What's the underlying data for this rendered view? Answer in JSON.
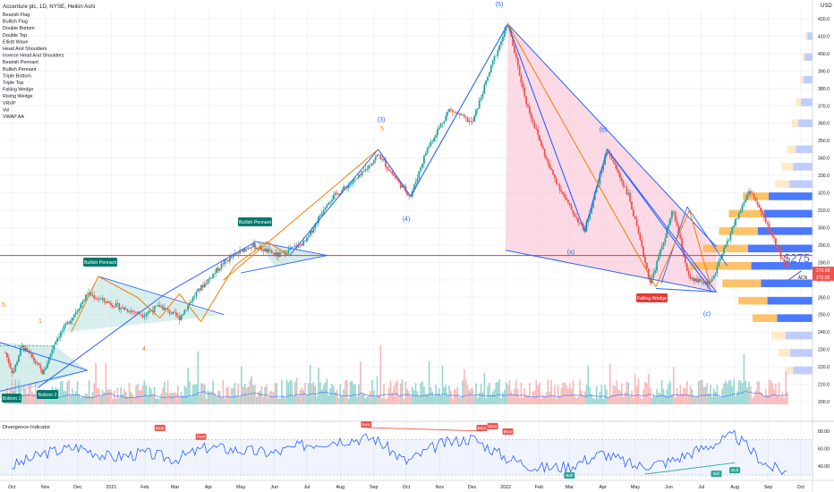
{
  "header": {
    "title": "Accenture plc, 1D, NYSE, Heikin Ashi",
    "currency": "USD"
  },
  "indicator_legend": [
    "Bearish Flag",
    "Bullish Flag",
    "Double Bottom",
    "Double Top",
    "Elliott Wave",
    "Head And Shoulders",
    "Inverse Head And Shoulders",
    "Bearish Pennant",
    "Bullish Pennant",
    "Triple Bottom",
    "Triple Top",
    "Falling Wedge",
    "Rising Wedge",
    "VRVP",
    "Vol",
    "VWAP AA"
  ],
  "price_axis": {
    "ticks": [
      420,
      410,
      400,
      390,
      380,
      370,
      360,
      350,
      340,
      330,
      320,
      310,
      300,
      290,
      280,
      270,
      260,
      250,
      240,
      230,
      220,
      210,
      200
    ],
    "last_price_label": "273.68",
    "last_price_label_2": "272.50",
    "symbol_tag": "ACN"
  },
  "oscillator": {
    "title": "Divergence Indicator",
    "ticks": [
      80,
      60,
      40
    ],
    "tick_labels": [
      "80.00",
      "60.00",
      "40.00"
    ],
    "bear_label": "Bear",
    "bull_label": "Bull"
  },
  "time_axis": [
    "Oct",
    "Nov",
    "Dec",
    "2021",
    "Feb",
    "Mar",
    "Apr",
    "May",
    "Jun",
    "Jul",
    "Aug",
    "Sep",
    "Oct",
    "Nov",
    "Dec",
    "2022",
    "Feb",
    "Mar",
    "Apr",
    "May",
    "Jun",
    "Jul",
    "Aug",
    "Sep",
    "Oct"
  ],
  "pattern_labels": {
    "bottom1": "Bottom 1",
    "bottom2": "Bottom 2",
    "bullish_pennant_1": "Bullish Pennant",
    "bullish_pennant_2": "Bullish Pennant",
    "falling_wedge": "Falling Wedge"
  },
  "wave_labels": {
    "w5": "(5)",
    "w3": "(3)",
    "w3_sub": "5",
    "w4": "(4)",
    "wb": "(b)",
    "wa": "(a)",
    "wc": "(c)",
    "sub1": "1",
    "sub4": "4",
    "sub_left": "5"
  },
  "annotation": {
    "target": "$275"
  },
  "colors": {
    "up": "#26a69a",
    "down": "#ef5350",
    "trend": "#2962ff",
    "orange": "#f57c00",
    "pennant_fill": "#b2dfdb",
    "bear_fill": "#f8bbd0",
    "vrvp_blue": "#2962ff",
    "vrvp_orange": "#ffa726",
    "hline": "#e53935"
  },
  "chart_data": {
    "type": "candlestick",
    "title": "Accenture plc, 1D, NYSE, Heikin Ashi",
    "ylabel": "USD",
    "ylim": [
      195,
      425
    ],
    "x_start": "2020-10",
    "x_end": "2022-10",
    "price_path": [
      {
        "date": "2020-09-25",
        "price": 228
      },
      {
        "date": "2020-10-02",
        "price": 216
      },
      {
        "date": "2020-10-10",
        "price": 232
      },
      {
        "date": "2020-10-20",
        "price": 225
      },
      {
        "date": "2020-10-30",
        "price": 216
      },
      {
        "date": "2020-11-10",
        "price": 235
      },
      {
        "date": "2020-11-25",
        "price": 248
      },
      {
        "date": "2020-12-10",
        "price": 262
      },
      {
        "date": "2020-12-25",
        "price": 258
      },
      {
        "date": "2021-01-10",
        "price": 254
      },
      {
        "date": "2021-01-30",
        "price": 250
      },
      {
        "date": "2021-02-15",
        "price": 255
      },
      {
        "date": "2021-03-05",
        "price": 248
      },
      {
        "date": "2021-03-20",
        "price": 262
      },
      {
        "date": "2021-04-15",
        "price": 280
      },
      {
        "date": "2021-05-10",
        "price": 290
      },
      {
        "date": "2021-06-05",
        "price": 284
      },
      {
        "date": "2021-06-30",
        "price": 292
      },
      {
        "date": "2021-07-20",
        "price": 315
      },
      {
        "date": "2021-08-20",
        "price": 330
      },
      {
        "date": "2021-09-05",
        "price": 342
      },
      {
        "date": "2021-09-25",
        "price": 325
      },
      {
        "date": "2021-10-05",
        "price": 318
      },
      {
        "date": "2021-10-20",
        "price": 345
      },
      {
        "date": "2021-11-10",
        "price": 368
      },
      {
        "date": "2021-12-01",
        "price": 360
      },
      {
        "date": "2021-12-20",
        "price": 395
      },
      {
        "date": "2022-01-03",
        "price": 417
      },
      {
        "date": "2022-01-20",
        "price": 372
      },
      {
        "date": "2022-02-10",
        "price": 335
      },
      {
        "date": "2022-03-01",
        "price": 312
      },
      {
        "date": "2022-03-15",
        "price": 298
      },
      {
        "date": "2022-04-05",
        "price": 345
      },
      {
        "date": "2022-04-25",
        "price": 318
      },
      {
        "date": "2022-05-15",
        "price": 268
      },
      {
        "date": "2022-06-05",
        "price": 310
      },
      {
        "date": "2022-06-20",
        "price": 270
      },
      {
        "date": "2022-07-10",
        "price": 268
      },
      {
        "date": "2022-07-30",
        "price": 300
      },
      {
        "date": "2022-08-15",
        "price": 322
      },
      {
        "date": "2022-09-05",
        "price": 295
      },
      {
        "date": "2022-09-20",
        "price": 273.68
      }
    ],
    "volume_profile": [
      {
        "price": 318,
        "buy": 68,
        "sell": 40
      },
      {
        "price": 308,
        "buy": 75,
        "sell": 55
      },
      {
        "price": 298,
        "buy": 85,
        "sell": 60
      },
      {
        "price": 288,
        "buy": 100,
        "sell": 70
      },
      {
        "price": 278,
        "buy": 95,
        "sell": 95
      },
      {
        "price": 268,
        "buy": 80,
        "sell": 60
      },
      {
        "price": 258,
        "buy": 70,
        "sell": 45
      },
      {
        "price": 248,
        "buy": 55,
        "sell": 38
      },
      {
        "price": 238,
        "buy": 42,
        "sell": 22
      },
      {
        "price": 228,
        "buy": 35,
        "sell": 18
      },
      {
        "price": 218,
        "buy": 30,
        "sell": 12
      },
      {
        "price": 345,
        "buy": 26,
        "sell": 14
      },
      {
        "price": 335,
        "buy": 30,
        "sell": 18
      },
      {
        "price": 325,
        "buy": 36,
        "sell": 22
      },
      {
        "price": 360,
        "buy": 22,
        "sell": 10
      },
      {
        "price": 372,
        "buy": 18,
        "sell": 8
      },
      {
        "price": 385,
        "buy": 14,
        "sell": 5
      },
      {
        "price": 398,
        "buy": 12,
        "sell": 4
      },
      {
        "price": 410,
        "buy": 8,
        "sell": 3
      }
    ],
    "horizontal_line": 284,
    "target_price": 275,
    "oscillator_series": [
      {
        "date": "2020-10-01",
        "value": 40
      },
      {
        "date": "2020-11-01",
        "value": 55
      },
      {
        "date": "2020-12-01",
        "value": 62
      },
      {
        "date": "2021-01-01",
        "value": 50
      },
      {
        "date": "2021-02-01",
        "value": 55
      },
      {
        "date": "2021-03-01",
        "value": 48
      },
      {
        "date": "2021-04-01",
        "value": 62
      },
      {
        "date": "2021-05-01",
        "value": 58
      },
      {
        "date": "2021-06-01",
        "value": 55
      },
      {
        "date": "2021-07-01",
        "value": 65
      },
      {
        "date": "2021-08-01",
        "value": 70
      },
      {
        "date": "2021-09-01",
        "value": 72
      },
      {
        "date": "2021-10-01",
        "value": 45
      },
      {
        "date": "2021-11-01",
        "value": 65
      },
      {
        "date": "2021-12-01",
        "value": 72
      },
      {
        "date": "2022-01-01",
        "value": 50
      },
      {
        "date": "2022-02-01",
        "value": 38
      },
      {
        "date": "2022-03-01",
        "value": 40
      },
      {
        "date": "2022-04-01",
        "value": 55
      },
      {
        "date": "2022-05-01",
        "value": 40
      },
      {
        "date": "2022-06-01",
        "value": 45
      },
      {
        "date": "2022-07-01",
        "value": 60
      },
      {
        "date": "2022-08-01",
        "value": 75
      },
      {
        "date": "2022-09-01",
        "value": 40
      },
      {
        "date": "2022-09-20",
        "value": 33
      }
    ]
  }
}
